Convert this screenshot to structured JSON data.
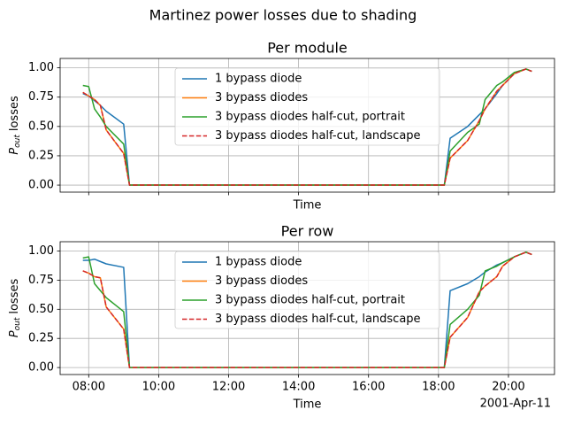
{
  "title": "Martinez power losses due to shading",
  "date_label": "2001-Apr-11",
  "chart_data": [
    {
      "type": "line",
      "title": "Per module",
      "xlabel": "Time",
      "ylabel": [
        "P",
        "out",
        "losses"
      ],
      "x": [
        "07:50",
        "08:00",
        "08:10",
        "08:20",
        "08:30",
        "09:00",
        "09:10",
        "18:10",
        "18:20",
        "18:50",
        "19:10",
        "19:20",
        "19:40",
        "19:50",
        "20:10",
        "20:30",
        "20:40"
      ],
      "xlim": [
        "07:11",
        "21:19"
      ],
      "xticks": [
        "08:00",
        "10:00",
        "12:00",
        "14:00",
        "16:00",
        "18:00",
        "20:00"
      ],
      "ylim": [
        -0.06,
        1.08
      ],
      "yticks": [
        {
          "value": 0,
          "label": "0.00"
        },
        {
          "value": 0.25,
          "label": "0.25"
        },
        {
          "value": 0.5,
          "label": "0.50"
        },
        {
          "value": 0.75,
          "label": "0.75"
        },
        {
          "value": 1,
          "label": "1.00"
        }
      ],
      "grid": true,
      "legend": "upper center",
      "series": [
        {
          "name": "1 bypass diode",
          "color": "#1f77b4",
          "linestyle": "solid",
          "values": [
            0.78,
            0.76,
            0.72,
            0.68,
            0.63,
            0.52,
            0,
            0,
            0.4,
            0.5,
            0.6,
            0.65,
            0.78,
            0.85,
            0.95,
            0.99,
            0.97
          ]
        },
        {
          "name": "3 bypass diodes",
          "color": "#ff7f0e",
          "linestyle": "solid",
          "values": [
            0.79,
            0.76,
            0.73,
            0.68,
            0.47,
            0.27,
            0,
            0,
            0.23,
            0.38,
            0.55,
            0.65,
            0.8,
            0.85,
            0.95,
            0.99,
            0.97
          ]
        },
        {
          "name": "3 bypass diodes half-cut, portrait",
          "color": "#2ca02c",
          "linestyle": "solid",
          "values": [
            0.85,
            0.84,
            0.65,
            0.58,
            0.5,
            0.35,
            0,
            0,
            0.29,
            0.45,
            0.52,
            0.73,
            0.85,
            0.88,
            0.96,
            0.99,
            0.97
          ]
        },
        {
          "name": "3 bypass diodes half-cut, landscape",
          "color": "#d62728",
          "linestyle": "dashed",
          "values": [
            0.79,
            0.76,
            0.73,
            0.68,
            0.47,
            0.27,
            0,
            0,
            0.23,
            0.38,
            0.55,
            0.65,
            0.8,
            0.85,
            0.95,
            0.99,
            0.97
          ]
        }
      ]
    },
    {
      "type": "line",
      "title": "Per row",
      "xlabel": "Time",
      "ylabel": [
        "P",
        "out",
        "losses"
      ],
      "x": [
        "07:50",
        "08:00",
        "08:10",
        "08:20",
        "08:30",
        "09:00",
        "09:10",
        "18:10",
        "18:20",
        "18:50",
        "19:10",
        "19:20",
        "19:40",
        "19:50",
        "20:10",
        "20:30",
        "20:40"
      ],
      "xlim": [
        "07:11",
        "21:19"
      ],
      "xticks": [
        "08:00",
        "10:00",
        "12:00",
        "14:00",
        "16:00",
        "18:00",
        "20:00"
      ],
      "ylim": [
        -0.06,
        1.08
      ],
      "yticks": [
        {
          "value": 0,
          "label": "0.00"
        },
        {
          "value": 0.25,
          "label": "0.25"
        },
        {
          "value": 0.5,
          "label": "0.50"
        },
        {
          "value": 0.75,
          "label": "0.75"
        },
        {
          "value": 1,
          "label": "1.00"
        }
      ],
      "grid": true,
      "legend": "upper center",
      "series": [
        {
          "name": "1 bypass diode",
          "color": "#1f77b4",
          "linestyle": "solid",
          "values": [
            0.92,
            0.92,
            0.93,
            0.91,
            0.89,
            0.86,
            0,
            0,
            0.66,
            0.72,
            0.78,
            0.82,
            0.88,
            0.9,
            0.95,
            0.99,
            0.97
          ]
        },
        {
          "name": "3 bypass diodes",
          "color": "#ff7f0e",
          "linestyle": "solid",
          "values": [
            0.83,
            0.81,
            0.78,
            0.77,
            0.52,
            0.33,
            0,
            0,
            0.26,
            0.43,
            0.65,
            0.7,
            0.78,
            0.87,
            0.95,
            0.99,
            0.97
          ]
        },
        {
          "name": "3 bypass diodes half-cut, portrait",
          "color": "#2ca02c",
          "linestyle": "solid",
          "values": [
            0.94,
            0.95,
            0.72,
            0.66,
            0.6,
            0.48,
            0,
            0,
            0.37,
            0.5,
            0.62,
            0.83,
            0.87,
            0.9,
            0.95,
            0.99,
            0.97
          ]
        },
        {
          "name": "3 bypass diodes half-cut, landscape",
          "color": "#d62728",
          "linestyle": "dashed",
          "values": [
            0.83,
            0.81,
            0.78,
            0.77,
            0.52,
            0.33,
            0,
            0,
            0.26,
            0.43,
            0.65,
            0.7,
            0.78,
            0.87,
            0.95,
            0.99,
            0.97
          ]
        }
      ]
    }
  ]
}
